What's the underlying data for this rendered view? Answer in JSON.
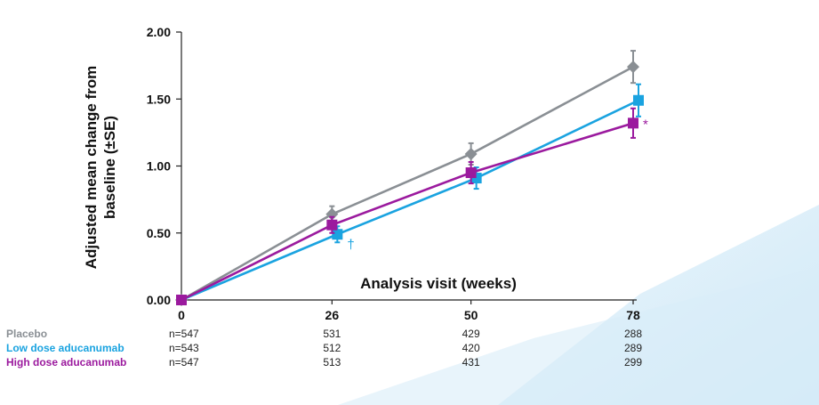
{
  "chart_data": {
    "type": "line",
    "x": [
      0,
      26,
      50,
      78
    ],
    "xlabel": "Analysis visit (weeks)",
    "ylabel": "Adjusted mean change from baseline (±SE)",
    "yticks": [
      "0.00",
      "0.50",
      "1.00",
      "1.50",
      "2.00"
    ],
    "xticks": [
      "0",
      "26",
      "50",
      "78"
    ],
    "ylim": [
      0,
      2
    ],
    "series": [
      {
        "name": "Placebo",
        "color": "#8a8f94",
        "marker": "diamond",
        "values": [
          0,
          0.64,
          1.09,
          1.74
        ],
        "se": [
          0,
          0.06,
          0.08,
          0.12
        ],
        "n": [
          "n=547",
          "531",
          "429",
          "288"
        ]
      },
      {
        "name": "Low dose aducanumab",
        "color": "#1aa3e0",
        "marker": "square",
        "values": [
          0,
          0.49,
          0.91,
          1.49
        ],
        "se": [
          0,
          0.06,
          0.08,
          0.12
        ],
        "n": [
          "n=543",
          "512",
          "420",
          "289"
        ]
      },
      {
        "name": "High dose aducanumab",
        "color": "#9b1a9e",
        "marker": "square",
        "values": [
          0,
          0.56,
          0.95,
          1.32
        ],
        "se": [
          0,
          0.06,
          0.08,
          0.11
        ],
        "n": [
          "n=547",
          "513",
          "431",
          "299"
        ]
      }
    ],
    "annotations": [
      {
        "text": "†",
        "series": "Low dose aducanumab",
        "x": 26
      },
      {
        "text": "*",
        "series": "High dose aducanumab",
        "x": 78
      }
    ]
  }
}
